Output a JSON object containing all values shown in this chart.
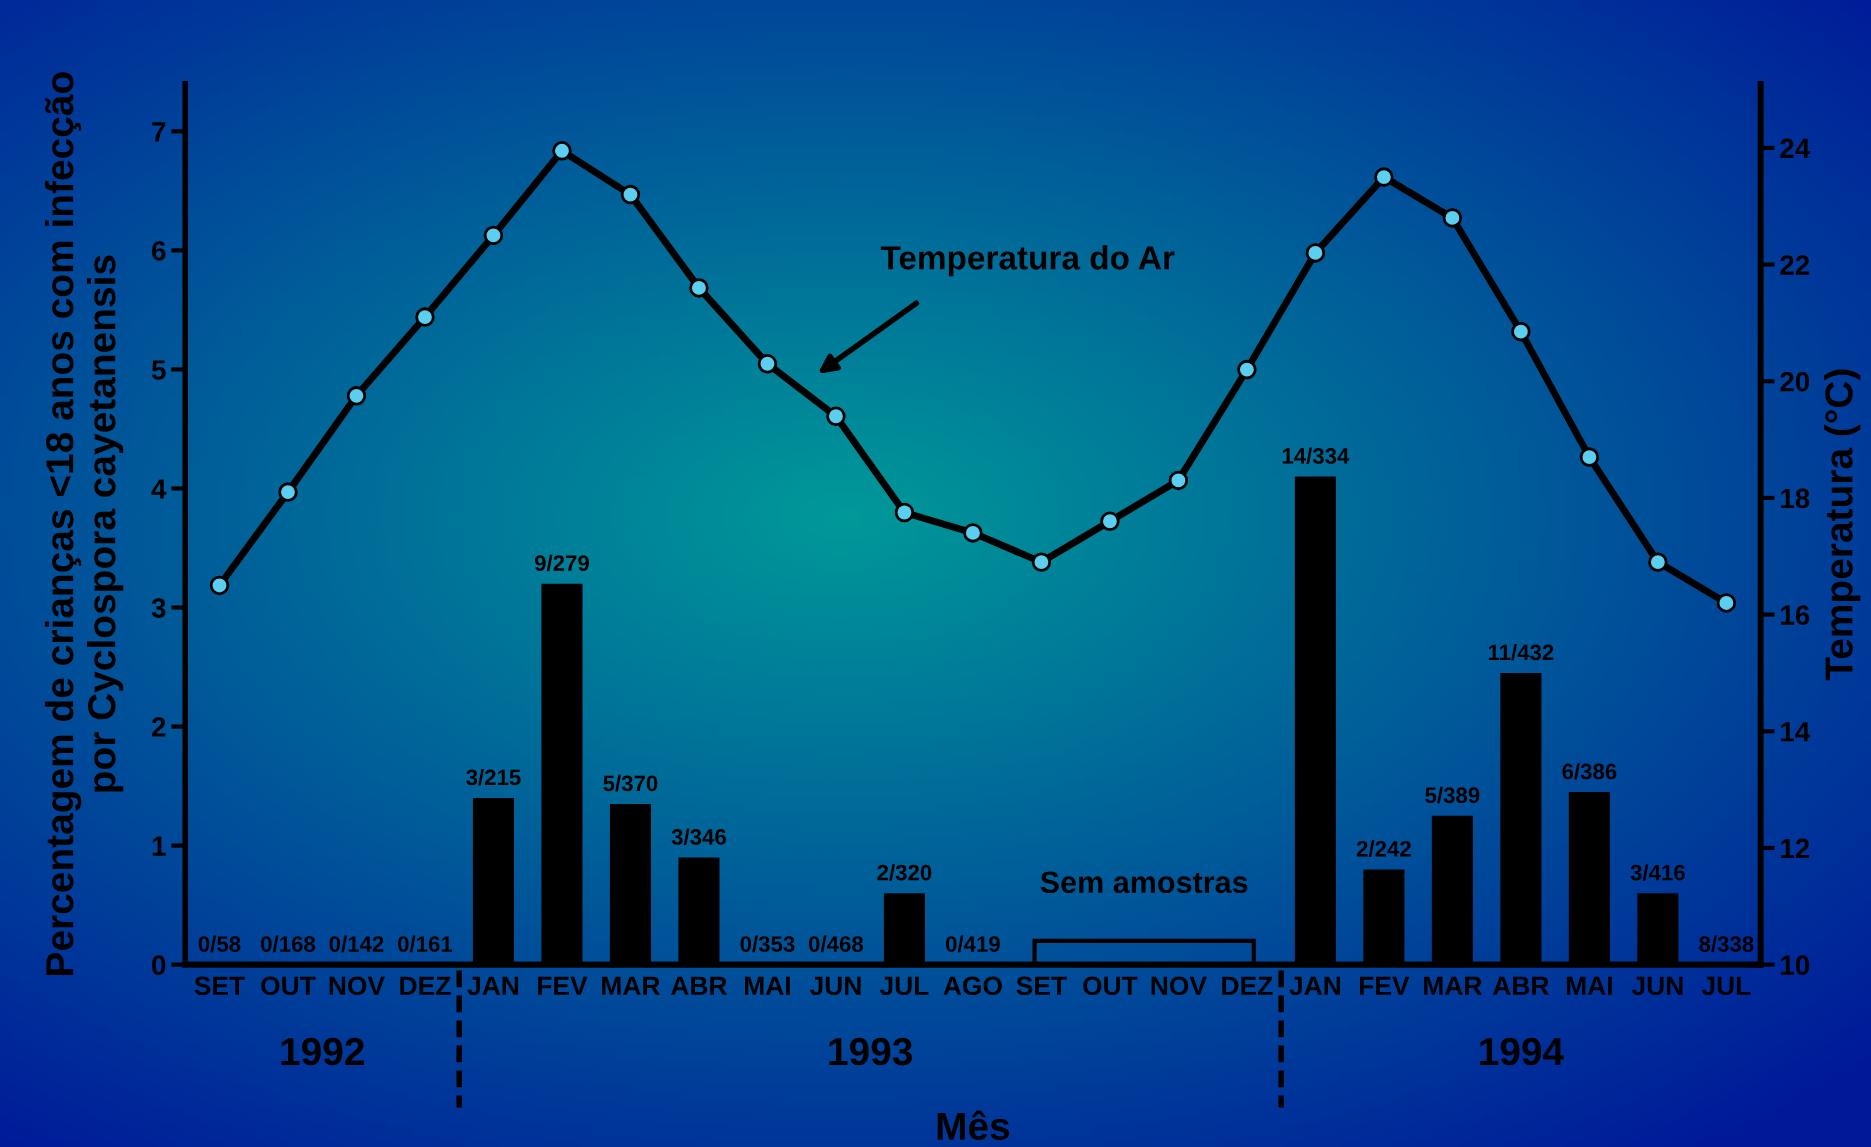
{
  "chart_data": {
    "type": "bar",
    "categories": [
      "SET",
      "OUT",
      "NOV",
      "DEZ",
      "JAN",
      "FEV",
      "MAR",
      "ABR",
      "MAI",
      "JUN",
      "JUL",
      "AGO",
      "SET",
      "OUT",
      "NOV",
      "DEZ",
      "JAN",
      "FEV",
      "MAR",
      "ABR",
      "MAI",
      "JUN",
      "JUL"
    ],
    "series": [
      {
        "color": "#000000",
        "values": [
          0,
          0,
          0,
          0,
          1.4,
          3.2,
          1.35,
          0.9,
          0,
          0,
          0.6,
          0,
          null,
          null,
          null,
          null,
          4.1,
          0.8,
          1.25,
          2.45,
          1.45,
          0.6,
          null
        ],
        "value_labels": [
          "0/58",
          "0/168",
          "0/142",
          "0/161",
          "3/215",
          "9/279",
          "5/370",
          "3/346",
          "0/353",
          "0/468",
          "2/320",
          "0/419",
          null,
          null,
          null,
          null,
          "14/334",
          "2/242",
          "5/389",
          "11/432",
          "6/386",
          "3/416",
          "8/338"
        ]
      },
      {
        "type": "line",
        "axis": "y2",
        "name": "Temperatura do Ar",
        "color": "#000000",
        "values": [
          16.5,
          18.1,
          19.75,
          21.1,
          22.5,
          23.95,
          23.2,
          21.6,
          20.3,
          19.4,
          17.75,
          17.4,
          16.9,
          17.6,
          18.3,
          20.2,
          22.2,
          23.5,
          22.8,
          20.85,
          18.7,
          16.9,
          16.2
        ]
      }
    ],
    "xlabel": "Mês",
    "ylabel": "Percentagem de crianças <18 anos com infecção\npor Cyclospora cayetanensis",
    "y2label": "Temperatura (°C)",
    "ylim": [
      0,
      7.4
    ],
    "yticks": [
      0,
      1,
      2,
      3,
      4,
      5,
      6,
      7
    ],
    "y2lim": [
      10,
      25.1
    ],
    "y2ticks": [
      10,
      12,
      14,
      16,
      18,
      20,
      22,
      24
    ],
    "annotations": [
      "Sem amostras",
      "1992",
      "1993",
      "1994"
    ],
    "marker": "circle",
    "line_style": "solid",
    "grid": false,
    "legend": false
  }
}
